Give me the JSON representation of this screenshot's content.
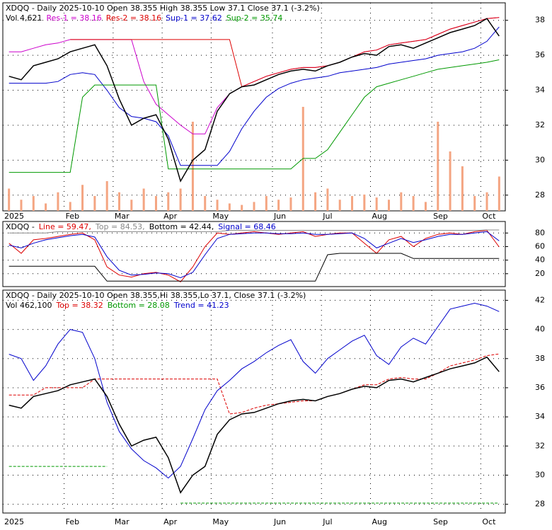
{
  "chart_data": [
    {
      "type": "line",
      "title": "XDQQ - Daily 2025-10-10 Open 38.355  High 38.355  Low 37.1  Close 37.1 (-3.2%)",
      "categories": [
        "2025",
        null,
        null,
        null,
        null,
        "Feb",
        null,
        null,
        null,
        "Mar",
        null,
        null,
        null,
        "Apr",
        null,
        null,
        null,
        "May",
        null,
        null,
        null,
        null,
        "Jun",
        null,
        null,
        null,
        "Jul",
        null,
        null,
        null,
        "Aug",
        null,
        null,
        null,
        null,
        "Sep",
        null,
        null,
        null,
        "Oct",
        null
      ],
      "ylim": [
        27.1,
        39.0
      ],
      "yticks": [
        28,
        30,
        32,
        34,
        36,
        38
      ],
      "grid": true,
      "close": {
        "color": "#000000",
        "values": [
          34.8,
          34.6,
          35.4,
          35.6,
          35.8,
          36.2,
          36.4,
          36.6,
          35.4,
          33.5,
          32.0,
          32.4,
          32.6,
          31.2,
          28.8,
          30.0,
          30.6,
          32.8,
          33.8,
          34.2,
          34.3,
          34.6,
          34.9,
          35.1,
          35.2,
          35.1,
          35.4,
          35.6,
          35.9,
          36.1,
          36.0,
          36.5,
          36.6,
          36.4,
          36.7,
          37.0,
          37.3,
          37.5,
          37.7,
          38.1,
          37.1
        ]
      },
      "volume_label": "Vol 4,621",
      "volume": {
        "color": "#f4a582",
        "values": [
          3000,
          1500,
          2000,
          1000,
          2500,
          1200,
          3500,
          2000,
          4000,
          2500,
          1500,
          3000,
          2000,
          2500,
          3000,
          12000,
          2000,
          1500,
          1000,
          800,
          1200,
          2000,
          1500,
          1800,
          14000,
          2500,
          3000,
          1500,
          2000,
          2200,
          1800,
          1500,
          2500,
          2000,
          1200,
          12000,
          8000,
          6000,
          2000,
          2500,
          4621
        ]
      },
      "series": [
        {
          "name": "Res-1 = 38.16",
          "color": "#cc00cc",
          "values": [
            36.2,
            36.2,
            36.4,
            36.6,
            36.7,
            36.9,
            36.9,
            36.9,
            36.9,
            36.9,
            36.9,
            34.5,
            33.2,
            32.6,
            32.0,
            31.5,
            31.5,
            33.0,
            33.8,
            34.2,
            34.5,
            34.8,
            35.0,
            35.2,
            35.3,
            35.3,
            35.4,
            35.6,
            35.9,
            36.2,
            36.3,
            36.6,
            36.7,
            36.8,
            36.9,
            37.2,
            37.5,
            37.7,
            37.9,
            38.1,
            38.16
          ]
        },
        {
          "name": "Res-2 = 38.16",
          "color": "#dd0000",
          "values": [
            null,
            null,
            null,
            null,
            null,
            36.9,
            36.9,
            36.9,
            36.9,
            36.9,
            36.9,
            36.9,
            36.9,
            36.9,
            36.9,
            36.9,
            36.9,
            36.9,
            36.9,
            34.2,
            34.5,
            34.8,
            35.0,
            35.2,
            35.3,
            35.3,
            35.4,
            35.6,
            35.9,
            36.2,
            36.3,
            36.6,
            36.7,
            36.8,
            36.9,
            37.2,
            37.5,
            37.7,
            37.9,
            38.1,
            38.16
          ]
        },
        {
          "name": "Sup-1 = 37.62",
          "color": "#0000cc",
          "values": [
            34.4,
            34.4,
            34.4,
            34.4,
            34.5,
            34.9,
            35.0,
            34.9,
            34.0,
            33.0,
            32.5,
            32.4,
            32.2,
            31.4,
            29.7,
            29.7,
            29.7,
            29.7,
            30.5,
            31.8,
            32.8,
            33.6,
            34.1,
            34.4,
            34.6,
            34.7,
            34.8,
            35.0,
            35.1,
            35.2,
            35.3,
            35.5,
            35.6,
            35.7,
            35.8,
            36.0,
            36.1,
            36.2,
            36.4,
            36.8,
            37.62
          ]
        },
        {
          "name": "Sup-2 = 35.74",
          "color": "#009900",
          "values": [
            29.3,
            29.3,
            29.3,
            29.3,
            29.3,
            29.3,
            33.6,
            34.3,
            34.3,
            34.3,
            34.3,
            34.3,
            34.3,
            29.5,
            29.5,
            29.5,
            29.5,
            29.5,
            29.5,
            29.5,
            29.5,
            29.5,
            29.5,
            29.5,
            30.1,
            30.1,
            30.6,
            31.6,
            32.6,
            33.6,
            34.2,
            34.4,
            34.6,
            34.8,
            35.0,
            35.2,
            35.3,
            35.4,
            35.5,
            35.6,
            35.74
          ]
        }
      ]
    },
    {
      "type": "line",
      "title": "XDQQ -",
      "ylim": [
        1,
        97
      ],
      "yticks": [
        20,
        40,
        60,
        80
      ],
      "grid": true,
      "series": [
        {
          "name": "Line = 59.47,",
          "color": "#dd0000",
          "values": [
            65,
            50,
            70,
            72,
            75,
            78,
            80,
            70,
            30,
            18,
            15,
            20,
            22,
            18,
            8,
            30,
            60,
            80,
            78,
            80,
            82,
            80,
            78,
            80,
            82,
            75,
            78,
            80,
            80,
            65,
            50,
            70,
            75,
            60,
            72,
            78,
            80,
            78,
            82,
            84,
            59.47
          ]
        },
        {
          "name": "Top = 84.53,",
          "color": "#888888",
          "values": [
            80,
            80,
            80,
            80,
            82,
            82,
            82,
            82,
            82,
            82,
            82,
            82,
            82,
            82,
            82,
            82,
            82,
            82,
            84,
            84,
            84,
            84,
            84,
            84,
            84,
            84,
            84,
            84,
            84,
            84,
            84,
            84,
            84,
            84,
            84,
            84,
            84,
            84,
            84,
            84.53,
            84.53
          ]
        },
        {
          "name": "Bottom = 42.44,",
          "color": "#000000",
          "values": [
            31,
            31,
            31,
            31,
            31,
            31,
            31,
            31,
            9,
            9,
            9,
            9,
            9,
            9,
            9,
            9,
            9,
            9,
            9,
            9,
            9,
            9,
            9,
            9,
            9,
            9,
            48,
            50,
            50,
            50,
            50,
            50,
            50,
            42.44,
            42.44,
            42.44,
            42.44,
            42.44,
            42.44,
            42.44,
            42.44
          ]
        },
        {
          "name": "Signal = 68.46",
          "color": "#0000cc",
          "values": [
            62,
            58,
            65,
            70,
            73,
            76,
            78,
            74,
            45,
            25,
            18,
            19,
            21,
            20,
            14,
            22,
            48,
            72,
            78,
            79,
            80,
            80,
            79,
            79,
            80,
            78,
            78,
            79,
            80,
            72,
            58,
            65,
            72,
            66,
            70,
            75,
            78,
            78,
            80,
            82,
            68.46
          ]
        }
      ]
    },
    {
      "type": "line",
      "title": "XDQQ - Daily 2025-10-10 Open 38.355,Hi 38.355,Lo 37.1, Close 37.1 (-3.2%)",
      "categories": [
        "2025",
        null,
        null,
        null,
        null,
        "Feb",
        null,
        null,
        null,
        "Mar",
        null,
        null,
        null,
        "Apr",
        null,
        null,
        null,
        "May",
        null,
        null,
        null,
        null,
        "Jun",
        null,
        null,
        null,
        "Jul",
        null,
        null,
        null,
        "Aug",
        null,
        null,
        null,
        null,
        "Sep",
        null,
        null,
        null,
        "Oct",
        null
      ],
      "ylim": [
        27.4,
        42.7
      ],
      "yticks": [
        28,
        30,
        32,
        34,
        36,
        38,
        40,
        42
      ],
      "grid": true,
      "volume_label": "Vol 462,100",
      "close": {
        "color": "#000000",
        "values": [
          34.8,
          34.6,
          35.4,
          35.6,
          35.8,
          36.2,
          36.4,
          36.6,
          35.4,
          33.5,
          32.0,
          32.4,
          32.6,
          31.2,
          28.8,
          30.0,
          30.6,
          32.8,
          33.8,
          34.2,
          34.3,
          34.6,
          34.9,
          35.1,
          35.2,
          35.1,
          35.4,
          35.6,
          35.9,
          36.1,
          36.0,
          36.5,
          36.6,
          36.4,
          36.7,
          37.0,
          37.3,
          37.5,
          37.7,
          38.1,
          37.1
        ]
      },
      "series": [
        {
          "name": "Top = 38.32",
          "color": "#dd0000",
          "dash": true,
          "values": [
            35.5,
            35.5,
            35.5,
            36.0,
            36.0,
            36.0,
            36.0,
            36.6,
            36.6,
            36.6,
            36.6,
            36.6,
            36.6,
            36.6,
            36.6,
            36.6,
            36.6,
            36.6,
            34.2,
            34.3,
            34.6,
            34.8,
            34.9,
            35.0,
            35.1,
            35.1,
            35.4,
            35.6,
            35.9,
            36.2,
            36.2,
            36.6,
            36.7,
            36.6,
            36.6,
            37.0,
            37.5,
            37.7,
            37.9,
            38.2,
            38.32
          ]
        },
        {
          "name": "Bottom = 28.08",
          "color": "#009900",
          "dash": true,
          "values": [
            30.6,
            30.6,
            30.6,
            30.6,
            30.6,
            30.6,
            30.6,
            30.6,
            30.6,
            null,
            null,
            null,
            null,
            null,
            28.08,
            28.08,
            28.08,
            28.08,
            28.08,
            28.08,
            28.08,
            28.08,
            28.08,
            28.08,
            28.08,
            28.08,
            28.08,
            28.08,
            28.08,
            28.08,
            28.08,
            28.08,
            28.08,
            28.08,
            28.08,
            28.08,
            28.08,
            28.08,
            28.08,
            28.08,
            28.08
          ]
        },
        {
          "name": "Trend = 41.23",
          "color": "#0000cc",
          "values": [
            38.3,
            38.0,
            36.5,
            37.5,
            39.0,
            40.0,
            39.8,
            38.0,
            35.0,
            33.0,
            31.8,
            31.0,
            30.5,
            29.8,
            30.6,
            32.5,
            34.5,
            35.8,
            36.5,
            37.3,
            37.8,
            38.4,
            38.9,
            39.3,
            37.8,
            37.0,
            38.0,
            38.6,
            39.2,
            39.6,
            38.2,
            37.6,
            38.8,
            39.4,
            39.0,
            40.2,
            41.4,
            41.6,
            41.8,
            41.6,
            41.23
          ]
        }
      ]
    }
  ]
}
